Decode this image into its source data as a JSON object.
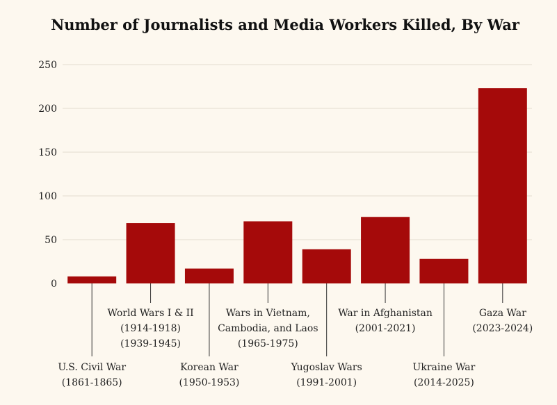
{
  "chart_data": {
    "type": "bar",
    "title": "Number of Journalists and Media Workers Killed, By War",
    "xlabel": "",
    "ylabel": "",
    "ylim": [
      0,
      250
    ],
    "yticks": [
      0,
      50,
      100,
      150,
      200,
      250
    ],
    "grid": true,
    "categories": [
      [
        "U.S. Civil War",
        "(1861-1865)"
      ],
      [
        "World Wars I & II",
        "(1914-1918)",
        "(1939-1945)"
      ],
      [
        "Korean War",
        "(1950-1953)"
      ],
      [
        "Wars in Vietnam,",
        "Cambodia, and Laos",
        "(1965-1975)"
      ],
      [
        "Yugoslav Wars",
        "(1991-2001)"
      ],
      [
        "War in Afghanistan",
        "(2001-2021)"
      ],
      [
        "Ukraine War",
        "(2014-2025)"
      ],
      [
        "Gaza War",
        "(2023-2024)"
      ]
    ],
    "label_position": [
      "low",
      "high",
      "low",
      "high",
      "low",
      "high",
      "low",
      "high"
    ],
    "values": [
      8,
      69,
      17,
      71,
      39,
      76,
      28,
      223
    ],
    "colors": {
      "bar": "#a50a0a",
      "background": "#fdf8ef",
      "grid": "#e4dccf"
    }
  }
}
